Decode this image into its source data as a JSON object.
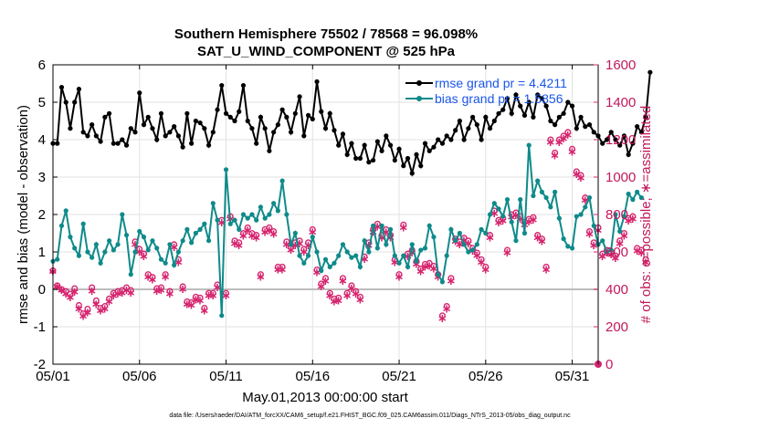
{
  "chart_data": {
    "type": "line",
    "title": "Southern Hemisphere 75502 / 78568 = 96.098%",
    "subtitle": "SAT_U_WIND_COMPONENT @ 525 hPa",
    "xlabel": "May.01,2013 00:00:00 start",
    "ylabel": "rmse and bias (model - observation)",
    "y2label": "# of obs: o=possible; ∗=assimilated",
    "footer": "data file: /Users/raeder/DAI/ATM_forcXX/CAM6_setup/f.e21.FHIST_BGC.f09_025.CAM6assim.011/Diags_NTrS_2013-05/obs_diag_output.nc",
    "xlim": [
      0,
      31.5
    ],
    "ylim": [
      -2,
      6
    ],
    "y2lim": [
      0,
      1600
    ],
    "x_ticks": [
      0,
      5,
      10,
      15,
      20,
      25,
      30
    ],
    "x_tick_labels": [
      "05/01",
      "05/06",
      "05/11",
      "05/16",
      "05/21",
      "05/26",
      "05/31"
    ],
    "y_ticks": [
      "-2",
      "-1",
      "0",
      "1",
      "2",
      "3",
      "4",
      "5",
      "6"
    ],
    "y2_ticks": [
      "0",
      "200",
      "400",
      "600",
      "800",
      "1000",
      "1200",
      "1400",
      "1600"
    ],
    "grid": true,
    "legend_position": "top-right",
    "colors": {
      "rmse": "#000000",
      "bias": "#0f8a8a",
      "obs": "#d6246e",
      "grid": "#e2e2e2",
      "zero": "#bdbdbd"
    },
    "series": [
      {
        "name": "rmse",
        "legend_label": "rmse grand pr = 4.4211",
        "x_start": 0,
        "dx": 0.25,
        "values": [
          3.9,
          3.9,
          5.4,
          5.0,
          4.3,
          5.0,
          5.35,
          4.2,
          4.1,
          4.4,
          4.1,
          3.95,
          4.6,
          4.7,
          3.9,
          3.9,
          4.0,
          3.85,
          4.3,
          4.2,
          5.25,
          4.4,
          4.6,
          4.3,
          4.0,
          4.7,
          4.1,
          4.2,
          4.35,
          4.1,
          3.8,
          4.7,
          3.9,
          4.5,
          4.45,
          4.3,
          3.85,
          4.2,
          4.8,
          5.45,
          4.7,
          4.6,
          4.5,
          4.75,
          5.45,
          4.5,
          4.3,
          3.9,
          4.6,
          4.3,
          3.7,
          4.2,
          4.4,
          4.8,
          4.6,
          4.2,
          4.7,
          5.15,
          4.1,
          4.65,
          4.55,
          5.55,
          4.75,
          4.3,
          4.7,
          4.25,
          3.85,
          4.15,
          3.6,
          3.9,
          3.5,
          3.5,
          3.85,
          3.4,
          3.45,
          3.95,
          3.7,
          4.1,
          3.85,
          3.45,
          3.75,
          3.3,
          3.5,
          3.1,
          3.6,
          3.3,
          3.9,
          3.7,
          3.8,
          4.0,
          3.9,
          4.1,
          4.0,
          4.25,
          4.5,
          4.0,
          4.3,
          4.6,
          4.4,
          4.0,
          4.6,
          4.3,
          4.5,
          4.7,
          4.8,
          5.1,
          4.7,
          5.2,
          4.9,
          4.65,
          5.0,
          4.6,
          5.2,
          5.1,
          4.9,
          4.5,
          4.4,
          4.6,
          4.7,
          5.0,
          4.9,
          4.3,
          4.6,
          4.35,
          4.4,
          4.2,
          4.1,
          3.9,
          4.0,
          4.2,
          4.0,
          3.85,
          4.1,
          3.6,
          3.9,
          4.35,
          4.2,
          4.6,
          5.8
        ]
      },
      {
        "name": "bias",
        "legend_label": "bias grand pr = 1.5856",
        "x_start": 0,
        "dx": 0.25,
        "values": [
          0.75,
          0.8,
          1.7,
          2.1,
          1.4,
          1.1,
          0.9,
          1.75,
          1.0,
          0.85,
          1.2,
          0.7,
          1.0,
          1.3,
          1.05,
          1.2,
          2.0,
          1.45,
          0.4,
          1.0,
          1.55,
          1.4,
          1.05,
          1.3,
          1.1,
          0.8,
          0.7,
          1.2,
          0.65,
          1.0,
          1.3,
          1.6,
          1.25,
          1.5,
          1.6,
          1.75,
          1.3,
          2.3,
          1.85,
          -0.7,
          3.2,
          1.75,
          1.85,
          1.6,
          2.0,
          1.9,
          2.0,
          1.85,
          2.2,
          1.9,
          2.0,
          2.3,
          2.1,
          2.9,
          2.0,
          1.2,
          1.5,
          0.9,
          0.7,
          0.9,
          1.4,
          1.0,
          0.5,
          0.8,
          0.6,
          0.7,
          0.9,
          1.2,
          1.0,
          0.85,
          0.9,
          0.6,
          1.3,
          1.0,
          1.7,
          1.1,
          1.7,
          1.2,
          1.6,
          0.9,
          0.7,
          0.9,
          0.6,
          1.2,
          0.75,
          1.05,
          1.1,
          1.7,
          1.4,
          0.4,
          0.2,
          0.9,
          1.6,
          1.3,
          1.5,
          1.2,
          1.0,
          1.05,
          1.2,
          1.6,
          1.5,
          2.0,
          2.3,
          2.15,
          1.95,
          2.4,
          1.8,
          1.3,
          2.4,
          1.5,
          3.85,
          2.5,
          2.9,
          2.6,
          2.45,
          2.2,
          2.6,
          1.9,
          1.35,
          1.15,
          1.1,
          1.95,
          2.0,
          2.2,
          2.45,
          1.7,
          1.2,
          1.3,
          1.0,
          1.05,
          2.0,
          1.55,
          1.95,
          2.55,
          2.4,
          2.6,
          2.45
        ]
      },
      {
        "name": "obs possible",
        "x_start": 0,
        "dx": 0.25,
        "values": [
          500,
          420,
          400,
          390,
          375,
          405,
          315,
          270,
          295,
          410,
          340,
          300,
          310,
          350,
          380,
          390,
          395,
          410,
          395,
          655,
          615,
          590,
          480,
          465,
          405,
          410,
          480,
          390,
          640,
          560,
          415,
          335,
          330,
          360,
          355,
          300,
          380,
          380,
          425,
          770,
          380,
          790,
          660,
          650,
          700,
          730,
          700,
          690,
          480,
          720,
          730,
          710,
          520,
          520,
          655,
          625,
          650,
          660,
          615,
          650,
          720,
          505,
          430,
          460,
          380,
          350,
          355,
          460,
          380,
          420,
          390,
          360,
          575,
          650,
          720,
          750,
          690,
          720,
          690,
          560,
          480,
          745,
          590,
          610,
          550,
          510,
          535,
          540,
          525,
          480,
          260,
          310,
          460,
          670,
          655,
          675,
          660,
          620,
          595,
          560,
          520,
          690,
          820,
          770,
          780,
          610,
          800,
          810,
          790,
          760,
          775,
          785,
          690,
          670,
          520,
          1200,
          1130,
          1200,
          1220,
          1240,
          1150,
          1030,
          1010,
          890,
          710,
          650,
          730,
          590,
          610,
          600,
          580,
          660,
          700,
          780,
          790,
          620,
          610,
          560
        ]
      },
      {
        "name": "obs assimilated",
        "x_start": 0,
        "dx": 0.25,
        "values": [
          500,
          420,
          400,
          380,
          360,
          390,
          300,
          260,
          280,
          395,
          325,
          290,
          300,
          340,
          370,
          380,
          385,
          400,
          385,
          645,
          605,
          580,
          470,
          455,
          395,
          400,
          470,
          380,
          630,
          550,
          405,
          325,
          320,
          350,
          345,
          290,
          370,
          370,
          415,
          760,
          370,
          780,
          650,
          640,
          690,
          720,
          690,
          680,
          470,
          710,
          720,
          700,
          510,
          510,
          645,
          615,
          640,
          650,
          605,
          640,
          710,
          495,
          420,
          450,
          370,
          340,
          345,
          450,
          370,
          410,
          380,
          350,
          565,
          640,
          710,
          740,
          680,
          710,
          680,
          550,
          470,
          735,
          580,
          600,
          540,
          500,
          525,
          530,
          515,
          470,
          250,
          300,
          450,
          660,
          645,
          665,
          650,
          610,
          585,
          550,
          510,
          680,
          810,
          760,
          770,
          600,
          790,
          800,
          780,
          750,
          765,
          775,
          680,
          660,
          510,
          1190,
          1120,
          1190,
          1210,
          1230,
          1140,
          1020,
          1000,
          880,
          700,
          640,
          720,
          580,
          600,
          590,
          570,
          650,
          690,
          770,
          780,
          610,
          600,
          550
        ]
      }
    ]
  }
}
